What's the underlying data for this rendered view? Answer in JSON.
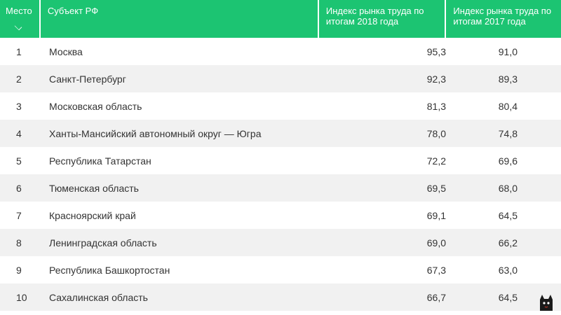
{
  "header": {
    "rank": "Место",
    "subject": "Субъект РФ",
    "index_2018": "Индекс рынка труда по итогам 2018 года",
    "index_2017": "Индекс рынка труда по итогам 2017 года"
  },
  "rows": [
    {
      "rank": "1",
      "subject": "Москва",
      "v2018": "95,3",
      "v2017": "91,0"
    },
    {
      "rank": "2",
      "subject": "Санкт-Петербург",
      "v2018": "92,3",
      "v2017": "89,3"
    },
    {
      "rank": "3",
      "subject": "Московская область",
      "v2018": "81,3",
      "v2017": "80,4"
    },
    {
      "rank": "4",
      "subject": "Ханты-Мансийский автономный округ — Югра",
      "v2018": "78,0",
      "v2017": "74,8"
    },
    {
      "rank": "5",
      "subject": "Республика Татарстан",
      "v2018": "72,2",
      "v2017": "69,6"
    },
    {
      "rank": "6",
      "subject": "Тюменская область",
      "v2018": "69,5",
      "v2017": "68,0"
    },
    {
      "rank": "7",
      "subject": "Красноярский край",
      "v2018": "69,1",
      "v2017": "64,5"
    },
    {
      "rank": "8",
      "subject": "Ленинградская область",
      "v2018": "69,0",
      "v2017": "66,2"
    },
    {
      "rank": "9",
      "subject": "Республика Башкортостан",
      "v2018": "67,3",
      "v2017": "63,0"
    },
    {
      "rank": "10",
      "subject": "Сахалинская область",
      "v2018": "66,7",
      "v2017": "64,5"
    }
  ],
  "colors": {
    "header_bg": "#1cc472",
    "header_text": "#ffffff",
    "row_alt": "#f1f1f1"
  },
  "icons": {
    "sort": "chevron-down-icon",
    "watermark": "cat-logo-icon"
  }
}
